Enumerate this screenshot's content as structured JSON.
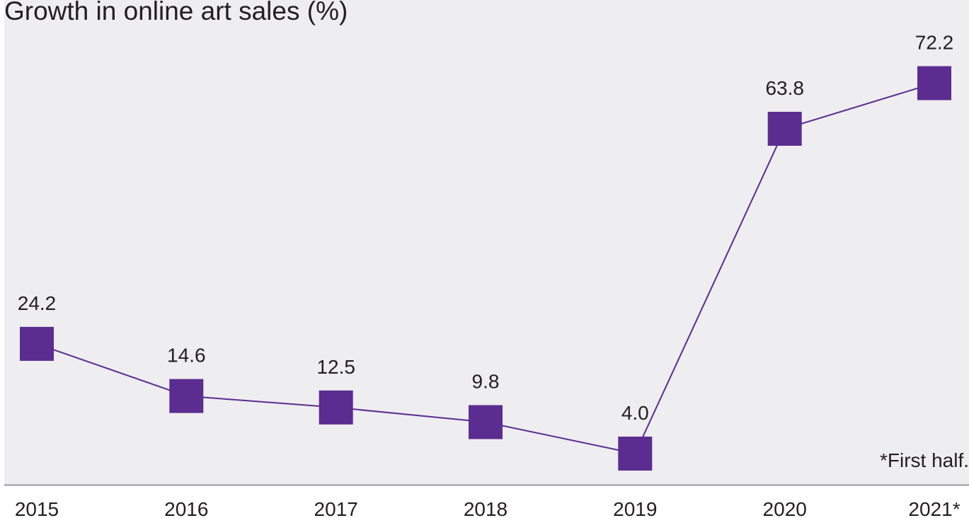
{
  "chart_data": {
    "type": "line",
    "title": "Growth in online art sales (%)",
    "note": "*First half.",
    "categories": [
      "2015",
      "2016",
      "2017",
      "2018",
      "2019",
      "2020",
      "2021*"
    ],
    "series": [
      {
        "values": [
          24.2,
          14.6,
          12.5,
          9.8,
          4.0,
          63.8,
          72.2
        ],
        "labels": [
          "24.2",
          "14.6",
          "12.5",
          "9.8",
          "4.0",
          "63.8",
          "72.2"
        ],
        "color": "#5b2d90"
      }
    ],
    "marker": "square",
    "xlabel": "",
    "ylabel": "",
    "ylim": [
      0,
      80
    ],
    "grid": false,
    "legend": "none"
  },
  "colors": {
    "plot_background": "#eeedf0",
    "line": "#5b2d90",
    "marker": "#5b2d90",
    "axis": "#9b9b9b",
    "text": "#231f20"
  }
}
